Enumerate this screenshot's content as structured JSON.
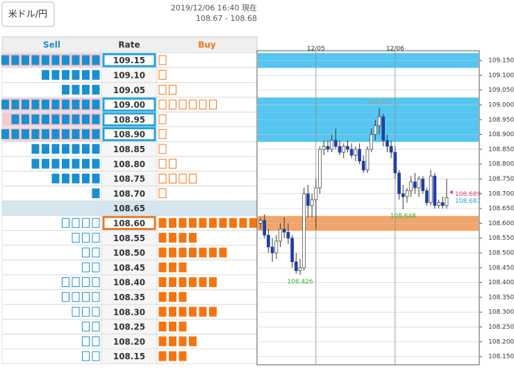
{
  "header": {
    "pair_button": "米ドル/円",
    "timestamp": "2019/12/06 16:40 現在",
    "bid_ask": "108.67 - 108.68"
  },
  "table": {
    "columns": [
      "Sell",
      "Rate",
      "Buy"
    ],
    "sell_color": "#1a8fd0",
    "buy_color": "#f5740f",
    "rows": [
      {
        "rate": "109.15",
        "sell": 10,
        "buy": 1,
        "highlight": "sell"
      },
      {
        "rate": "109.10",
        "sell": 6,
        "buy": 1
      },
      {
        "rate": "109.05",
        "sell": 4,
        "buy": 2
      },
      {
        "rate": "109.00",
        "sell": 10,
        "buy": 6,
        "highlight": "sell"
      },
      {
        "rate": "108.95",
        "sell": 9,
        "buy": 1,
        "highlight": "sell"
      },
      {
        "rate": "108.90",
        "sell": 10,
        "buy": 1,
        "highlight": "sell"
      },
      {
        "rate": "108.85",
        "sell": 7,
        "buy": 1
      },
      {
        "rate": "108.80",
        "sell": 7,
        "buy": 2
      },
      {
        "rate": "108.75",
        "sell": 5,
        "buy": 4
      },
      {
        "rate": "108.70",
        "sell": 1,
        "buy": 1
      },
      {
        "rate": "108.65",
        "sell": 0,
        "buy": 0,
        "current": true
      },
      {
        "rate": "108.60",
        "sell": 4,
        "buy": 10,
        "highlight": "buy"
      },
      {
        "rate": "108.55",
        "sell": 3,
        "buy": 4
      },
      {
        "rate": "108.50",
        "sell": 2,
        "buy": 7
      },
      {
        "rate": "108.45",
        "sell": 2,
        "buy": 3
      },
      {
        "rate": "108.40",
        "sell": 4,
        "buy": 6
      },
      {
        "rate": "108.35",
        "sell": 4,
        "buy": 3
      },
      {
        "rate": "108.30",
        "sell": 3,
        "buy": 6
      },
      {
        "rate": "108.25",
        "sell": 2,
        "buy": 3
      },
      {
        "rate": "108.20",
        "sell": 2,
        "buy": 4
      },
      {
        "rate": "108.15",
        "sell": 2,
        "buy": 3
      }
    ]
  },
  "chart_data": {
    "type": "candlestick",
    "categories": [
      null,
      null,
      null,
      null,
      null,
      null,
      null,
      null,
      null,
      null,
      null,
      null,
      null,
      null,
      "12/05",
      null,
      null,
      null,
      null,
      null,
      null,
      null,
      null,
      null,
      null,
      null,
      null,
      null,
      null,
      null,
      null,
      null,
      null,
      null,
      "12/06",
      null,
      null,
      null,
      null,
      null,
      null,
      null,
      null,
      null,
      null,
      null,
      null,
      null
    ],
    "open": [
      108.6,
      108.61,
      108.56,
      108.52,
      108.5,
      108.54,
      108.58,
      108.57,
      108.55,
      108.47,
      108.44,
      108.45,
      108.7,
      108.66,
      108.68,
      108.72,
      108.85,
      108.86,
      108.85,
      108.88,
      108.86,
      108.84,
      108.86,
      108.85,
      108.83,
      108.85,
      108.81,
      108.78,
      108.85,
      108.9,
      108.93,
      108.96,
      108.88,
      108.86,
      108.84,
      108.77,
      108.7,
      108.69,
      108.71,
      108.74,
      108.72,
      108.75,
      108.71,
      108.67,
      108.76,
      108.66,
      108.67,
      108.66
    ],
    "high": [
      108.62,
      108.63,
      108.58,
      108.55,
      108.56,
      108.6,
      108.62,
      108.6,
      108.56,
      108.5,
      108.48,
      108.72,
      108.73,
      108.7,
      108.75,
      108.86,
      108.88,
      108.88,
      108.9,
      108.92,
      108.88,
      108.87,
      108.88,
      108.87,
      108.86,
      108.87,
      108.83,
      108.86,
      108.92,
      108.95,
      108.99,
      108.97,
      108.9,
      108.88,
      108.86,
      108.78,
      108.73,
      108.72,
      108.76,
      108.77,
      108.76,
      108.76,
      108.72,
      108.78,
      108.77,
      108.68,
      108.69,
      108.75
    ],
    "low": [
      108.58,
      108.55,
      108.5,
      108.47,
      108.48,
      108.52,
      108.55,
      108.53,
      108.45,
      108.43,
      108.426,
      108.44,
      108.62,
      108.62,
      108.58,
      108.7,
      108.83,
      108.84,
      108.84,
      108.85,
      108.83,
      108.82,
      108.84,
      108.82,
      108.81,
      108.8,
      108.77,
      108.77,
      108.84,
      108.88,
      108.9,
      108.86,
      108.84,
      108.82,
      108.75,
      108.68,
      108.648,
      108.67,
      108.69,
      108.7,
      108.69,
      108.7,
      108.66,
      108.66,
      108.65,
      108.65,
      108.65,
      108.65
    ],
    "close": [
      108.61,
      108.56,
      108.52,
      108.5,
      108.54,
      108.58,
      108.57,
      108.55,
      108.47,
      108.44,
      108.45,
      108.7,
      108.66,
      108.68,
      108.72,
      108.85,
      108.86,
      108.85,
      108.88,
      108.86,
      108.84,
      108.86,
      108.85,
      108.83,
      108.85,
      108.81,
      108.78,
      108.85,
      108.9,
      108.93,
      108.96,
      108.88,
      108.86,
      108.84,
      108.77,
      108.7,
      108.69,
      108.71,
      108.74,
      108.72,
      108.75,
      108.71,
      108.67,
      108.76,
      108.66,
      108.67,
      108.66,
      108.687
    ],
    "up_color": "#ffffff",
    "down_color": "#1f3fa8",
    "ylim": [
      108.122,
      109.183
    ],
    "yticks": [
      {
        "value": 109.15,
        "label": "109.150"
      },
      {
        "value": 109.1,
        "label": "109.100"
      },
      {
        "value": 109.05,
        "label": "109.050"
      },
      {
        "value": 109.0,
        "label": "109.000"
      },
      {
        "value": 108.95,
        "label": "108.950"
      },
      {
        "value": 108.9,
        "label": "108.900"
      },
      {
        "value": 108.85,
        "label": "108.850"
      },
      {
        "value": 108.8,
        "label": "108.800"
      },
      {
        "value": 108.75,
        "label": "108.750"
      },
      {
        "value": 108.7,
        "label": "108.700"
      },
      {
        "value": 108.65,
        "label": "108.650"
      },
      {
        "value": 108.6,
        "label": "108.600"
      },
      {
        "value": 108.55,
        "label": "108.550"
      },
      {
        "value": 108.5,
        "label": "108.500"
      },
      {
        "value": 108.45,
        "label": "108.450"
      },
      {
        "value": 108.4,
        "label": "108.400"
      },
      {
        "value": 108.35,
        "label": "108.350"
      },
      {
        "value": 108.3,
        "label": "108.300"
      },
      {
        "value": 108.25,
        "label": "108.250"
      },
      {
        "value": 108.2,
        "label": "108.200"
      },
      {
        "value": 108.15,
        "label": "108.150"
      }
    ],
    "grid": true,
    "annotations": [
      {
        "text": "108.990",
        "value": 108.99,
        "color": "#9a9a9a"
      },
      {
        "text": "108.648",
        "value": 108.648,
        "color": "#2bb52b"
      },
      {
        "text": "108.426",
        "value": 108.426,
        "color": "#2bb52b"
      }
    ],
    "price_tags": [
      {
        "text": "108.689",
        "value": 108.689,
        "color": "#e0457b"
      },
      {
        "text": "108.687",
        "value": 108.687,
        "color": "#1fa3e0"
      }
    ]
  }
}
